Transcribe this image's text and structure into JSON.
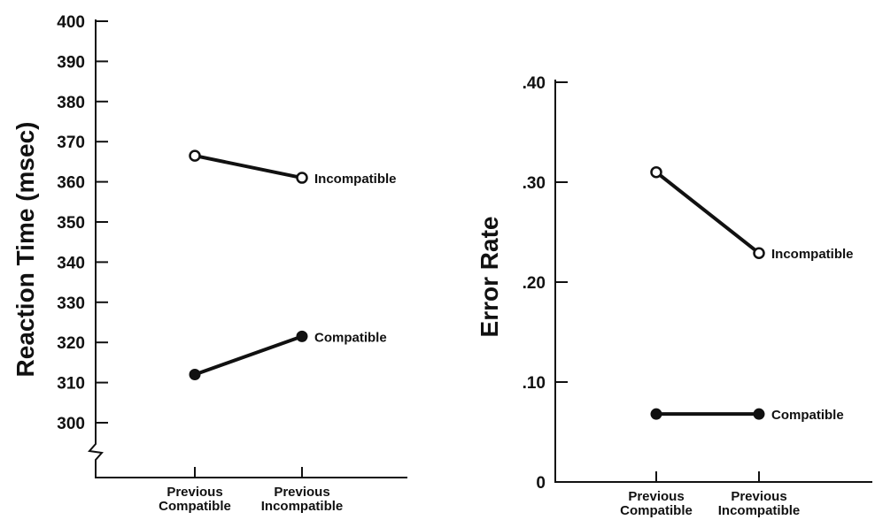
{
  "chart_data": [
    {
      "type": "line",
      "ylabel": "Reaction Time (msec)",
      "categories": [
        "Previous Compatible",
        "Previous Incompatible"
      ],
      "ylim": [
        300,
        400
      ],
      "yticks": [
        "400",
        "390",
        "380",
        "370",
        "360",
        "350",
        "340",
        "330",
        "320",
        "310",
        "300"
      ],
      "axis_break": true,
      "series": [
        {
          "name": "Incompatible",
          "marker": "open-circle",
          "values": [
            366.5,
            361
          ]
        },
        {
          "name": "Compatible",
          "marker": "filled-circle",
          "values": [
            312,
            321.5
          ]
        }
      ]
    },
    {
      "type": "line",
      "ylabel": "Error Rate",
      "categories": [
        "Previous Compatible",
        "Previous Incompatible"
      ],
      "ylim": [
        0,
        0.4
      ],
      "yticks": [
        ".40",
        ".30",
        ".20",
        ".10",
        "0"
      ],
      "series": [
        {
          "name": "Incompatible",
          "marker": "open-circle",
          "values": [
            0.31,
            0.229
          ]
        },
        {
          "name": "Compatible",
          "marker": "filled-circle",
          "values": [
            0.068,
            0.068
          ]
        }
      ]
    }
  ],
  "category_lines": [
    [
      "Previous",
      "Compatible"
    ],
    [
      "Previous",
      "Incompatible"
    ]
  ]
}
